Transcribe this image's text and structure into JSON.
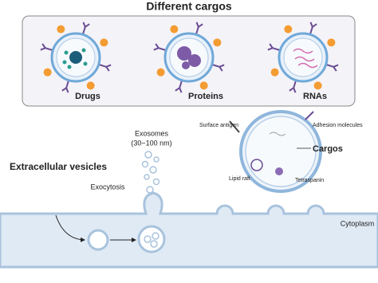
{
  "header": {
    "title": "Different cargos"
  },
  "cargos": [
    {
      "label": "Drugs"
    },
    {
      "label": "Proteins"
    },
    {
      "label": "RNAs"
    }
  ],
  "diagram": {
    "title": "Extracellular vesicles",
    "exosomes": "Exosomes",
    "size": "(30~100 nm)",
    "exocytosis": "Exocytosis",
    "cytoplasm": "Cytoplasm"
  },
  "exosome_detail": {
    "surface_antigen": "Surface antigen",
    "adhesion": "Adhesion molecules",
    "cargos": "Cargos",
    "lipid_raft": "Lipid raft",
    "tetraspanin": "Tetraspanin"
  }
}
